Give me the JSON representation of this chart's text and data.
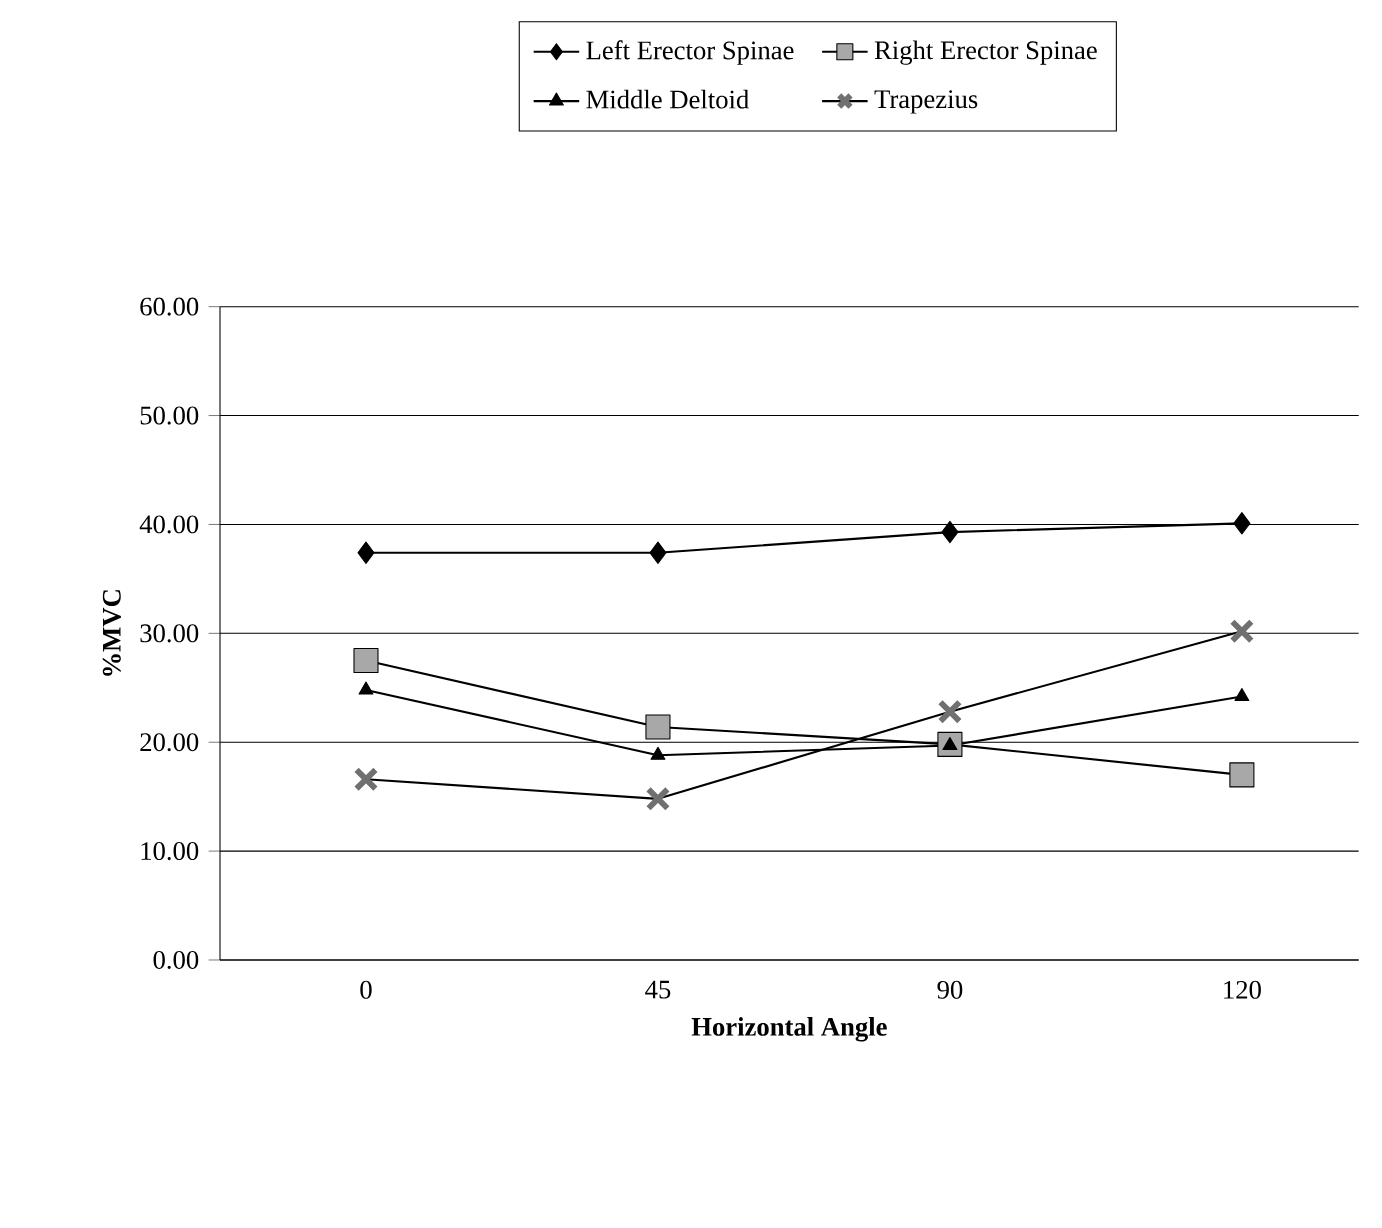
{
  "chart_data": {
    "type": "line",
    "xlabel": "Horizontal Angle",
    "ylabel": "%MVC",
    "categories": [
      "0",
      "45",
      "90",
      "120"
    ],
    "series": [
      {
        "name": "Left Erector Spinae",
        "color": "#000000",
        "marker": "diamond",
        "values": [
          37.4,
          37.4,
          39.3,
          40.1
        ]
      },
      {
        "name": "Right Erector Spinae",
        "color": "#a8a8a8",
        "marker": "square",
        "values": [
          27.5,
          21.4,
          19.8,
          17.0
        ]
      },
      {
        "name": "Middle Deltoid",
        "color": "#000000",
        "marker": "triangle",
        "values": [
          24.8,
          18.8,
          19.7,
          24.2
        ]
      },
      {
        "name": "Trapezius",
        "color": "#707070",
        "marker": "cross",
        "values": [
          16.6,
          14.8,
          22.8,
          30.2
        ]
      }
    ],
    "ylim": [
      0,
      60
    ],
    "yticks": [
      {
        "value": 0,
        "label": "0.00"
      },
      {
        "value": 10,
        "label": "10.00"
      },
      {
        "value": 20,
        "label": "20.00"
      },
      {
        "value": 30,
        "label": "30.00"
      },
      {
        "value": 40,
        "label": "40.00"
      },
      {
        "value": 50,
        "label": "50.00"
      },
      {
        "value": 60,
        "label": "60.00"
      }
    ],
    "grid": "y",
    "legend": "top",
    "line_style": "solid"
  }
}
